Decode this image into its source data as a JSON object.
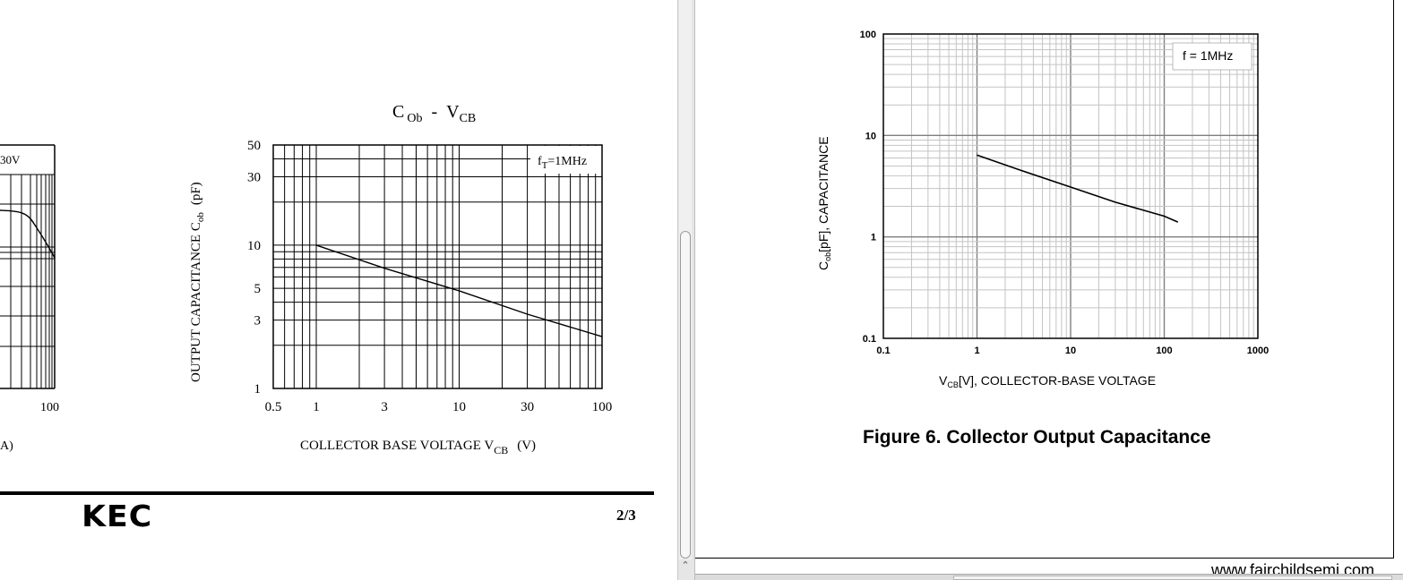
{
  "left_page": {
    "partial_chart": {
      "legend_fragment": "30V",
      "x_tick_fragment": "100",
      "xlabel_fragment": "A)"
    },
    "chart": {
      "title_main": "C",
      "title_sub1": "Ob",
      "title_dash": "-",
      "title_v": "V",
      "title_sub2": "CB",
      "ylabel_main": "OUTPUT CAPACITANCE C",
      "ylabel_sub": "ob",
      "ylabel_unit": "(pF)",
      "xlabel_main": "COLLECTOR BASE VOLTAGE V",
      "xlabel_sub": "CB",
      "xlabel_unit": "(V)",
      "legend_main": "f",
      "legend_sub": "T",
      "legend_rest": "=1MHz",
      "x_ticks": [
        "0.5",
        "1",
        "3",
        "10",
        "30",
        "100"
      ],
      "y_ticks": [
        "1",
        "3",
        "5",
        "10",
        "30",
        "50"
      ]
    },
    "footer": {
      "logo": "KEC",
      "page": "2/3"
    }
  },
  "right_page": {
    "chart": {
      "ylabel": "Cₒᵦ[pF], CAPACITANCE",
      "ylabel_main": "C",
      "ylabel_sub": "ob",
      "ylabel_rest": "[pF], CAPACITANCE",
      "xlabel_main": "V",
      "xlabel_sub": "CB",
      "xlabel_rest": "[V], COLLECTOR-BASE VOLTAGE",
      "legend": "f = 1MHz",
      "x_ticks": [
        "0.1",
        "1",
        "10",
        "100",
        "1000"
      ],
      "y_ticks": [
        "0.1",
        "1",
        "10",
        "100"
      ]
    },
    "caption": "Figure 6. Collector Output Capacitance",
    "website": "www.fairchildsemi.com"
  },
  "chart_data": [
    {
      "type": "line",
      "title": "C Ob - V CB",
      "xlabel": "COLLECTOR BASE VOLTAGE V CB (V)",
      "ylabel": "OUTPUT CAPACITANCE C ob (pF)",
      "x_scale": "log",
      "y_scale": "log",
      "xlim": [
        0.5,
        100
      ],
      "ylim": [
        1,
        50
      ],
      "grid": true,
      "legend": "top-right",
      "series": [
        {
          "name": "fT=1MHz",
          "x": [
            1,
            3,
            10,
            30,
            100
          ],
          "y": [
            10,
            6.9,
            4.8,
            3.3,
            2.3
          ]
        }
      ]
    },
    {
      "type": "line",
      "title": "Figure 6. Collector Output Capacitance",
      "xlabel": "VCB[V], COLLECTOR-BASE VOLTAGE",
      "ylabel": "Cob[pF], CAPACITANCE",
      "x_scale": "log",
      "y_scale": "log",
      "xlim": [
        0.1,
        1000
      ],
      "ylim": [
        0.1,
        100
      ],
      "grid": true,
      "legend": "top-right",
      "series": [
        {
          "name": "f = 1MHz",
          "x": [
            1,
            3,
            10,
            30,
            100,
            140
          ],
          "y": [
            6.4,
            4.5,
            3.1,
            2.2,
            1.6,
            1.4
          ]
        }
      ]
    }
  ],
  "colors": {
    "gridline": "#000000",
    "right_grid_minor": "#c8c8c8",
    "right_grid_major": "#808080",
    "scrollbar": "#f0f0f0"
  },
  "icons": {
    "scroll_up": "chevron-up-icon"
  }
}
